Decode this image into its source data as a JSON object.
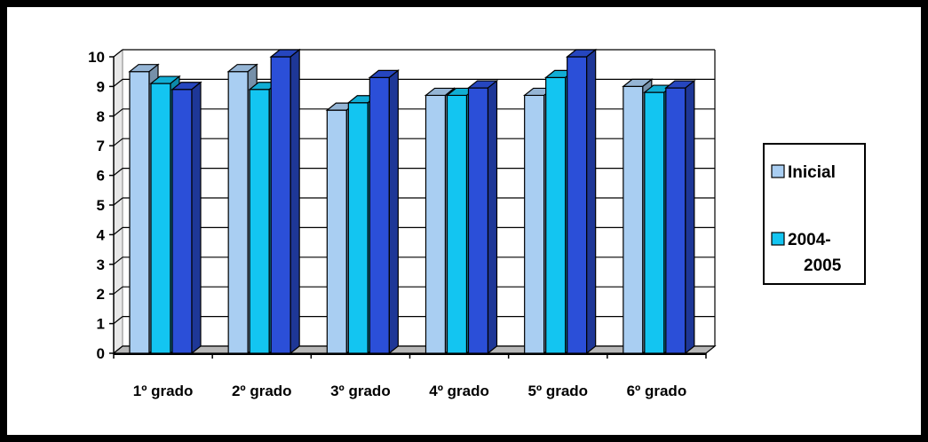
{
  "chart_data": {
    "type": "bar",
    "three_d": true,
    "categories": [
      "1º grado",
      "2º grado",
      "3º grado",
      "4º grado",
      "5º grado",
      "6º grado"
    ],
    "series": [
      {
        "name": "Inicial",
        "color": "#A9CEF2",
        "values": [
          9.5,
          9.5,
          8.2,
          8.7,
          8.7,
          9.0
        ]
      },
      {
        "name": "2004-2005",
        "color": "#13C5F1",
        "values": [
          9.1,
          8.9,
          8.45,
          8.7,
          9.3,
          8.8
        ]
      },
      {
        "name": "",
        "color": "#2B4FD8",
        "values": [
          8.9,
          10.0,
          9.3,
          8.95,
          10.0,
          8.95
        ]
      }
    ],
    "y_ticks": [
      "0",
      "1",
      "2",
      "3",
      "4",
      "5",
      "6",
      "7",
      "8",
      "9",
      "10"
    ],
    "ylim": [
      0,
      10
    ],
    "grid": true,
    "legend_position": "right",
    "title": "",
    "xlabel": "",
    "ylabel": ""
  }
}
